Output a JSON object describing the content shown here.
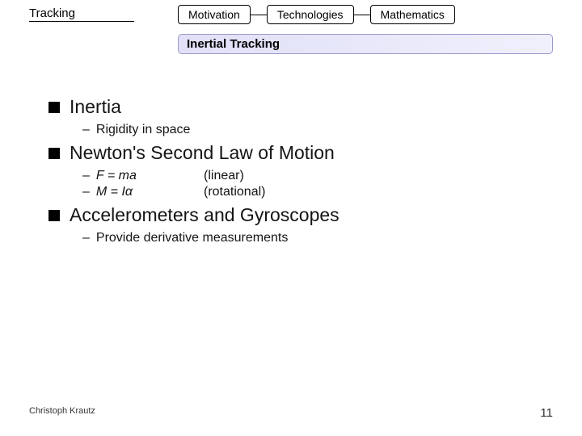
{
  "header": {
    "section": "Tracking",
    "tabs": [
      "Motivation",
      "Technologies",
      "Mathematics"
    ],
    "subtitle": "Inertial Tracking"
  },
  "content": {
    "b1": {
      "title": "Inertia",
      "sub1": "Rigidity in space"
    },
    "b2": {
      "title": "Newton's Second Law of Motion",
      "eq1_lhs": "F = ma",
      "eq1_rhs": "(linear)",
      "eq2_lhs": "M = Iα",
      "eq2_rhs": "(rotational)"
    },
    "b3": {
      "title": "Accelerometers and Gyroscopes",
      "sub1": "Provide derivative measurements"
    }
  },
  "footer": {
    "author": "Christoph Krautz",
    "page": "11"
  }
}
